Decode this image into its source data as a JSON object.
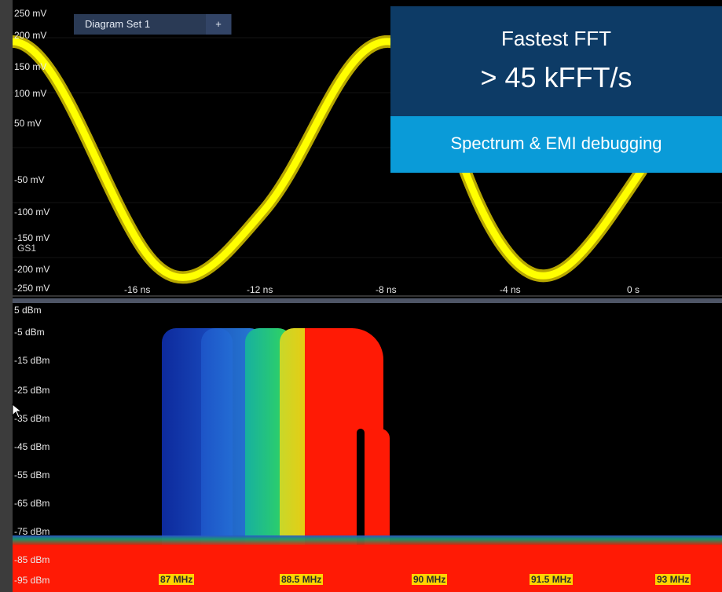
{
  "tabs": {
    "diagram_set": "Diagram Set 1",
    "add_tab": "+"
  },
  "time_axis": {
    "y_labels": [
      "250 mV",
      "200 mV",
      "150 mV",
      "100 mV",
      "50 mV",
      "-50 mV",
      "-100 mV",
      "-150 mV",
      "-200 mV",
      "-250 mV"
    ],
    "x_labels": [
      "-16 ns",
      "-12 ns",
      "-8 ns",
      "-4 ns",
      "0 s"
    ],
    "group_label": "GS1",
    "trace_color": "#ffff00"
  },
  "spectrum_axis": {
    "y_labels": [
      "5 dBm",
      "-5 dBm",
      "-15 dBm",
      "-25 dBm",
      "-35 dBm",
      "-45 dBm",
      "-55 dBm",
      "-65 dBm",
      "-75 dBm",
      "-85 dBm",
      "-95 dBm"
    ],
    "freq_labels": [
      "87 MHz",
      "88.5 MHz",
      "90 MHz",
      "91.5 MHz",
      "93 MHz"
    ]
  },
  "overlay": {
    "title": "Fastest FFT",
    "metric": "> 45 kFFT/s",
    "subtitle": "Spectrum & EMI debugging",
    "colors": {
      "dark": "#0d3b66",
      "light": "#0a9bd8"
    }
  }
}
